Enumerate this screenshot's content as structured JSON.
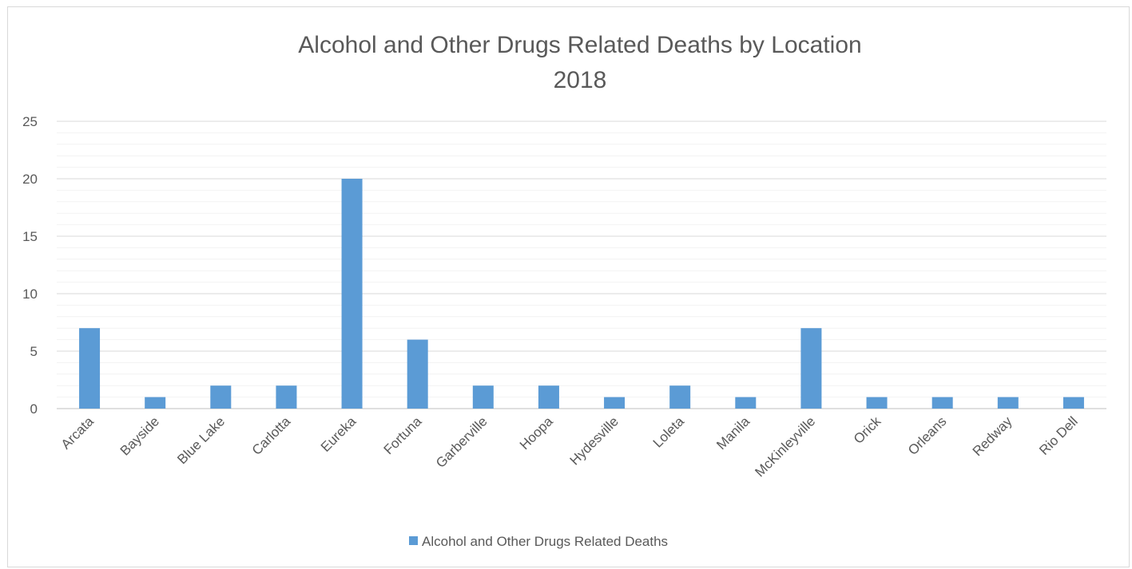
{
  "chart_data": {
    "type": "bar",
    "title": "Alcohol and Other Drugs Related Deaths by Location",
    "subtitle": "2018",
    "categories": [
      "Arcata",
      "Bayside",
      "Blue Lake",
      "Carlotta",
      "Eureka",
      "Fortuna",
      "Garberville",
      "Hoopa",
      "Hydesville",
      "Loleta",
      "Manila",
      "McKinleyville",
      "Orick",
      "Orleans",
      "Redway",
      "Rio Dell"
    ],
    "series": [
      {
        "name": "Alcohol and Other Drugs Related Deaths",
        "values": [
          7,
          1,
          2,
          2,
          20,
          6,
          2,
          2,
          1,
          2,
          1,
          7,
          1,
          1,
          1,
          1
        ]
      }
    ],
    "ylim": [
      0,
      25
    ],
    "yticks": [
      0,
      5,
      10,
      15,
      20,
      25
    ],
    "xlabel": "",
    "ylabel": "",
    "grid": true,
    "legend_position": "bottom",
    "colors": {
      "bar": "#5b9bd5",
      "grid_major": "#d9d9d9",
      "grid_minor": "#f2f2f2",
      "text": "#595959"
    }
  }
}
